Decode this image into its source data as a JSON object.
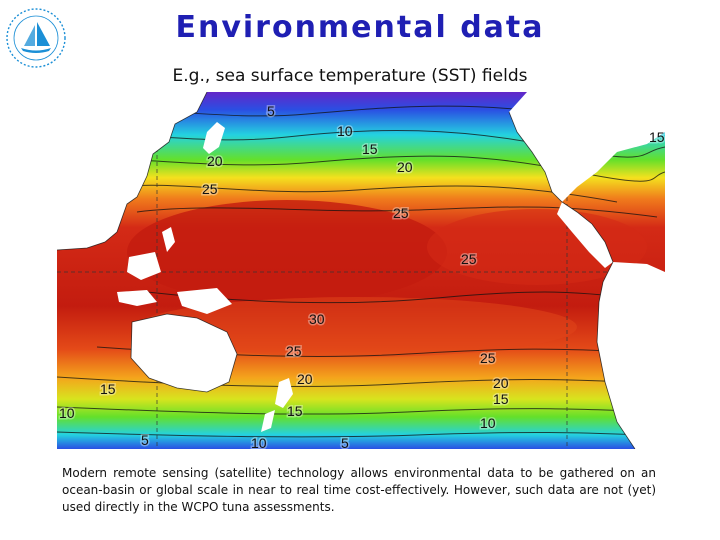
{
  "title": "Environmental data",
  "subtitle": "E.g., sea surface temperature (SST) fields",
  "caption": "Modern remote sensing (satellite) technology allows environmental data to be gathered on an ocean-basin or global scale in near to real time cost-effectively. However, such data are not (yet) used directly in the WCPO tuna assessments.",
  "logo": {
    "icon": "spc-sailboat-logo",
    "color": "#1b8fd6"
  },
  "map": {
    "contour_labels": [
      "5",
      "10",
      "15",
      "20",
      "25",
      "20",
      "25",
      "15",
      "25",
      "30",
      "25",
      "25",
      "15",
      "20",
      "20",
      "15",
      "10",
      "15",
      "10",
      "5",
      "10",
      "5"
    ],
    "palette": {
      "warm": "#d42a16",
      "hot": "#c31c0f",
      "orange": "#f07a1c",
      "yellow": "#f4e11e",
      "green": "#64e02a",
      "cyan": "#24d2e0",
      "blue": "#2a4fe3",
      "violet": "#6326c8",
      "land": "#ffffff"
    }
  }
}
